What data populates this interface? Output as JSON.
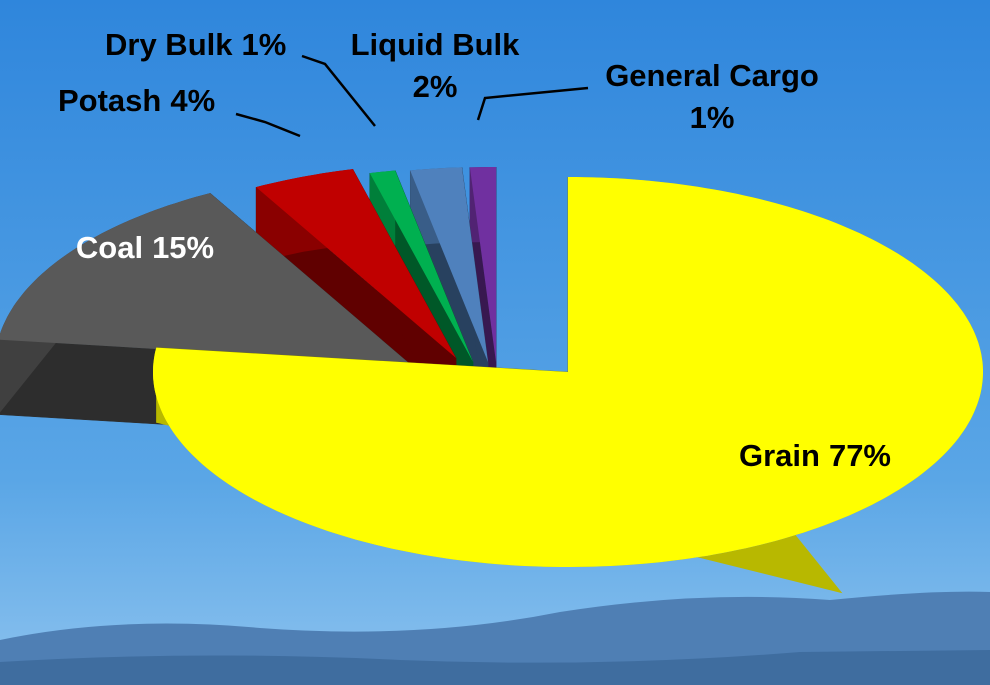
{
  "chart_data": {
    "type": "pie",
    "categories": [
      "Grain",
      "Coal",
      "Potash",
      "Dry Bulk",
      "Liquid Bulk",
      "General Cargo"
    ],
    "values": [
      77,
      15,
      4,
      1,
      2,
      1
    ],
    "value_labels": [
      "77%",
      "15%",
      "4%",
      "1%",
      "2%",
      "1%"
    ],
    "colors": [
      "#ffff00",
      "#595959",
      "#c00000",
      "#00b050",
      "#4f81bd",
      "#7030a0"
    ]
  }
}
